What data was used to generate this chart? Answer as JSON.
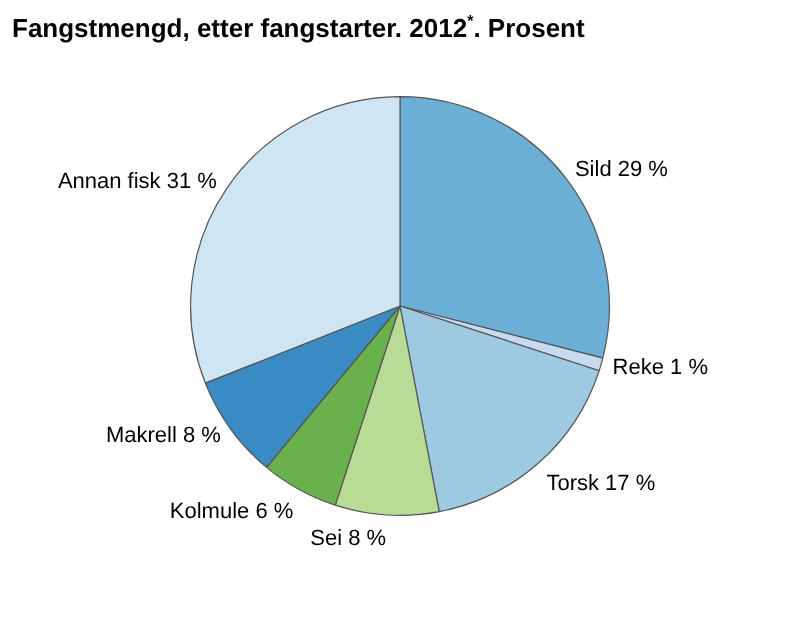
{
  "chart_data": {
    "type": "pie",
    "title": "Fangstmengd, etter fangstarter. 2012$^{*}$. Prosent",
    "categories": [
      "Sild",
      "Reke",
      "Torsk",
      "Sei",
      "Kolmule",
      "Makrell",
      "Annan fisk"
    ],
    "values": [
      29,
      1,
      17,
      8,
      6,
      8,
      31
    ],
    "value_labels": [
      "29 %",
      "1 %",
      "17 %",
      "8 %",
      "6 %",
      "8 %",
      "31 %"
    ],
    "colors": [
      "#6baed6",
      "#c6dbef",
      "#9ecae1",
      "#b8dc96",
      "#6ab04c",
      "#3a8ac4",
      "#cfe5f4"
    ],
    "legend": false
  }
}
